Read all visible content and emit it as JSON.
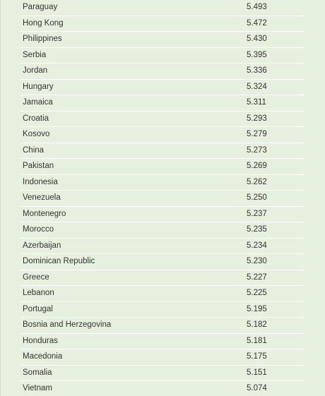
{
  "rows": [
    {
      "country": "Paraguay",
      "score": "5.493"
    },
    {
      "country": "Hong Kong",
      "score": "5.472"
    },
    {
      "country": "Philippines",
      "score": "5.430"
    },
    {
      "country": "Serbia",
      "score": "5.395"
    },
    {
      "country": "Jordan",
      "score": "5.336"
    },
    {
      "country": "Hungary",
      "score": "5.324"
    },
    {
      "country": "Jamaica",
      "score": "5.311"
    },
    {
      "country": "Croatia",
      "score": "5.293"
    },
    {
      "country": "Kosovo",
      "score": "5.279"
    },
    {
      "country": "China",
      "score": "5.273"
    },
    {
      "country": "Pakistan",
      "score": "5.269"
    },
    {
      "country": "Indonesia",
      "score": "5.262"
    },
    {
      "country": "Venezuela",
      "score": "5.250"
    },
    {
      "country": "Montenegro",
      "score": "5.237"
    },
    {
      "country": "Morocco",
      "score": "5.235"
    },
    {
      "country": "Azerbaijan",
      "score": "5.234"
    },
    {
      "country": "Dominican Republic",
      "score": "5.230"
    },
    {
      "country": "Greece",
      "score": "5.227"
    },
    {
      "country": "Lebanon",
      "score": "5.225"
    },
    {
      "country": "Portugal",
      "score": "5.195"
    },
    {
      "country": "Bosnia and Herzegovina",
      "score": "5.182"
    },
    {
      "country": "Honduras",
      "score": "5.181"
    },
    {
      "country": "Macedonia",
      "score": "5.175"
    },
    {
      "country": "Somalia",
      "score": "5.151"
    },
    {
      "country": "Vietnam",
      "score": "5.074"
    }
  ],
  "colors": {
    "background": "#e6f0df",
    "text": "#333333",
    "row_divider": "#ffffff"
  }
}
